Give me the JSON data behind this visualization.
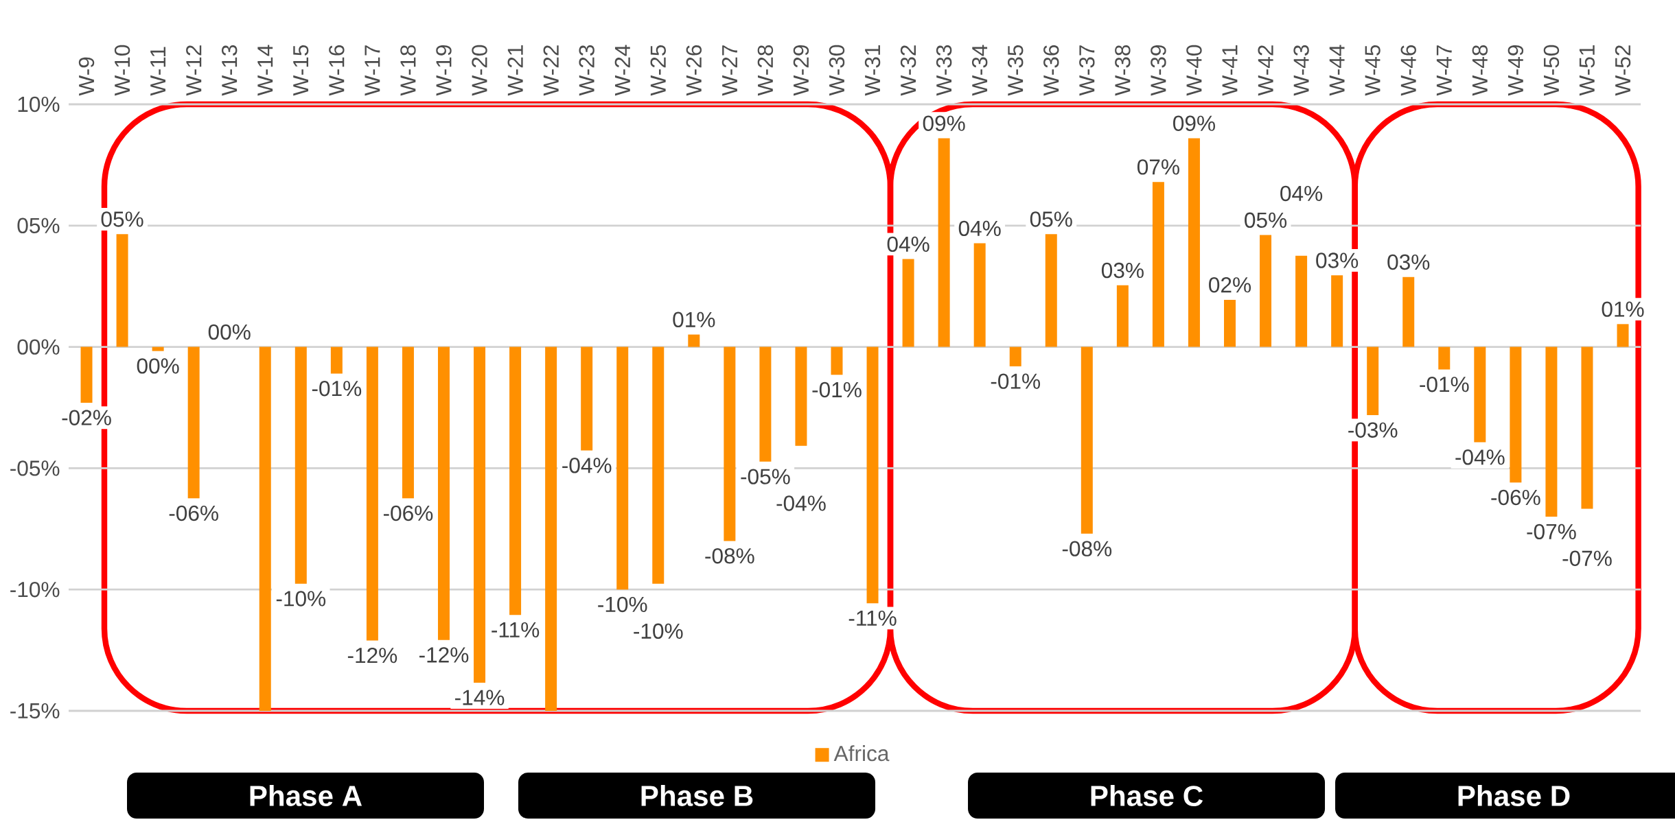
{
  "chart_data": {
    "type": "bar",
    "categories": [
      "W-9",
      "W-10",
      "W-11",
      "W-12",
      "W-13",
      "W-14",
      "W-15",
      "W-16",
      "W-17",
      "W-18",
      "W-19",
      "W-20",
      "W-21",
      "W-22",
      "W-23",
      "W-24",
      "W-25",
      "W-26",
      "W-27",
      "W-28",
      "W-29",
      "W-30",
      "W-31",
      "W-32",
      "W-33",
      "W-34",
      "W-35",
      "W-36",
      "W-37",
      "W-38",
      "W-39",
      "W-40",
      "W-41",
      "W-42",
      "W-43",
      "W-44",
      "W-45",
      "W-46",
      "W-47",
      "W-48",
      "W-49",
      "W-50",
      "W-51",
      "W-52"
    ],
    "series": [
      {
        "name": "Africa",
        "color": "#ff9000",
        "values": [
          -2.3,
          4.65,
          -0.17,
          -6.24,
          0,
          -15,
          -9.76,
          -1.1,
          -12.1,
          -6.24,
          -12.08,
          -13.84,
          -11.05,
          -15,
          -4.27,
          -10.0,
          -9.76,
          0.51,
          -8.0,
          -4.73,
          -4.08,
          -1.15,
          -10.57,
          3.62,
          8.6,
          4.27,
          -0.8,
          4.65,
          -7.7,
          2.54,
          6.8,
          8.6,
          1.94,
          4.61,
          3.76,
          2.95,
          -2.81,
          2.88,
          -0.93,
          -3.93,
          -5.59,
          -7.0,
          -6.67,
          0.94
        ],
        "value_labels": [
          "-02%",
          "05%",
          "00%",
          "-06%",
          "00%",
          null,
          "-10%",
          "-01%",
          "-12%",
          "-06%",
          "-12%",
          "-14%",
          "-11%",
          null,
          "-04%",
          "-10%",
          "-10%",
          "01%",
          "-08%",
          "-05%",
          "-04%",
          "-01%",
          "-11%",
          "04%",
          "09%",
          "04%",
          "-01%",
          "05%",
          "-08%",
          "03%",
          "07%",
          "09%",
          "02%",
          "05%",
          "04%",
          "03%",
          "-03%",
          "03%",
          "-01%",
          "-04%",
          "-06%",
          "-07%",
          "-07%",
          "01%"
        ]
      }
    ],
    "ylim": [
      -15,
      10
    ],
    "yticks": [
      {
        "value": -15,
        "label": "-15%"
      },
      {
        "value": -10,
        "label": "-10%"
      },
      {
        "value": -5,
        "label": "-05%"
      },
      {
        "value": 0,
        "label": "00%"
      },
      {
        "value": 5,
        "label": "05%"
      },
      {
        "value": 10,
        "label": "10%"
      }
    ],
    "grid": "y",
    "legend": "bottom",
    "annotations": [
      "Phase A",
      "Phase B",
      "Phase C",
      "Phase D"
    ]
  }
}
